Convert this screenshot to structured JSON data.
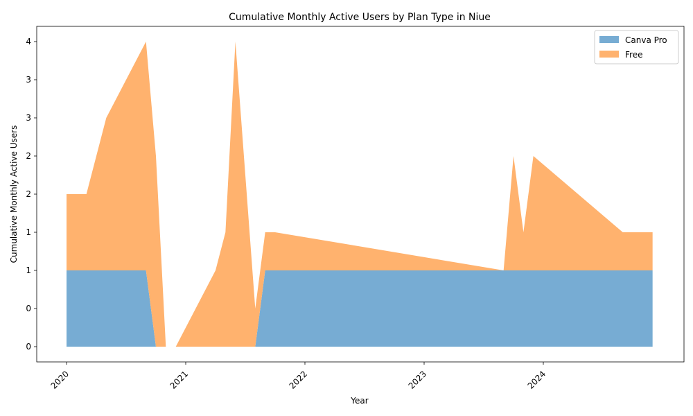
{
  "chart_data": {
    "type": "area",
    "stacked": true,
    "title": "Cumulative Monthly Active Users by Plan Type in Niue",
    "xlabel": "Year",
    "ylabel": "Cumulative Monthly Active Users",
    "x_ticks": [
      "2020",
      "2021",
      "2022",
      "2023",
      "2024"
    ],
    "y_ticks": [
      "0",
      "0",
      "1",
      "1",
      "2",
      "2",
      "3",
      "3",
      "4"
    ],
    "ylim": [
      -0.4,
      8.4
    ],
    "legend_position": "top-right",
    "grid": false,
    "x": [
      "2020-01",
      "2020-03",
      "2020-05",
      "2020-09",
      "2020-10",
      "2020-11",
      "2020-12",
      "2021-04",
      "2021-05",
      "2021-06",
      "2021-08",
      "2021-09",
      "2021-10",
      "2023-09",
      "2023-10",
      "2023-11",
      "2023-12",
      "2024-09",
      "2024-12"
    ],
    "series": [
      {
        "name": "Canva Pro",
        "color": "#77acd3",
        "values": [
          2,
          2,
          2,
          2,
          0,
          0,
          0,
          0,
          0,
          0,
          0,
          2,
          2,
          2,
          2,
          2,
          2,
          2,
          2
        ]
      },
      {
        "name": "Free",
        "color": "#ffb26e",
        "values": [
          2,
          2,
          4,
          6,
          5,
          0,
          0,
          2,
          3,
          8,
          1,
          1,
          1,
          0,
          3,
          1,
          3,
          1,
          1
        ]
      }
    ]
  }
}
